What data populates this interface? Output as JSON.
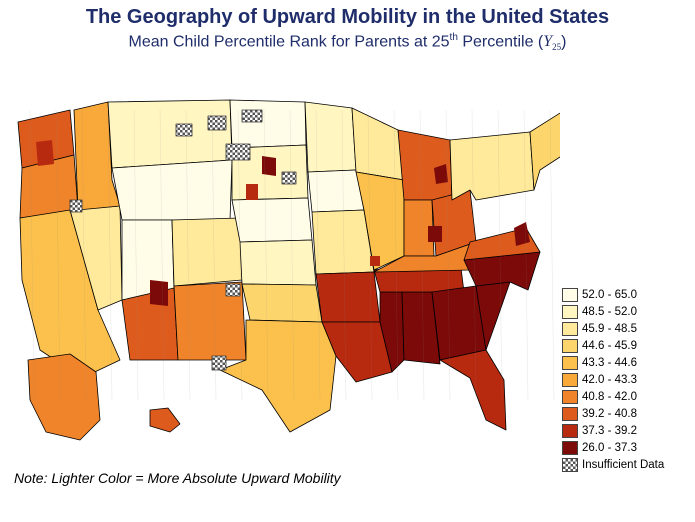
{
  "title": "The Geography of Upward Mobility in the United States",
  "subtitle": {
    "main": "Mean Child Percentile Rank for Parents at 25",
    "sup": "th",
    "tail": " Percentile (",
    "symbol": "Y",
    "symbol_sub": "25",
    "close": ")"
  },
  "legend": {
    "bins": [
      {
        "label": "52.0 - 65.0",
        "color": "#fffde8"
      },
      {
        "label": "48.5 - 52.0",
        "color": "#fff6c2"
      },
      {
        "label": "45.9 - 48.5",
        "color": "#ffe99a"
      },
      {
        "label": "44.6 - 45.9",
        "color": "#fdd56d"
      },
      {
        "label": "43.3 - 44.6",
        "color": "#fbc14c"
      },
      {
        "label": "42.0 - 43.3",
        "color": "#f9a83a"
      },
      {
        "label": "40.8 - 42.0",
        "color": "#f0842a"
      },
      {
        "label": "39.2 - 40.8",
        "color": "#de5b1e"
      },
      {
        "label": "37.3 - 39.2",
        "color": "#b82a10"
      },
      {
        "label": "26.0 - 37.3",
        "color": "#7b0a08"
      }
    ],
    "insufficient": "Insufficient Data"
  },
  "note": "Note: Lighter Color = More Absolute Upward Mobility"
}
